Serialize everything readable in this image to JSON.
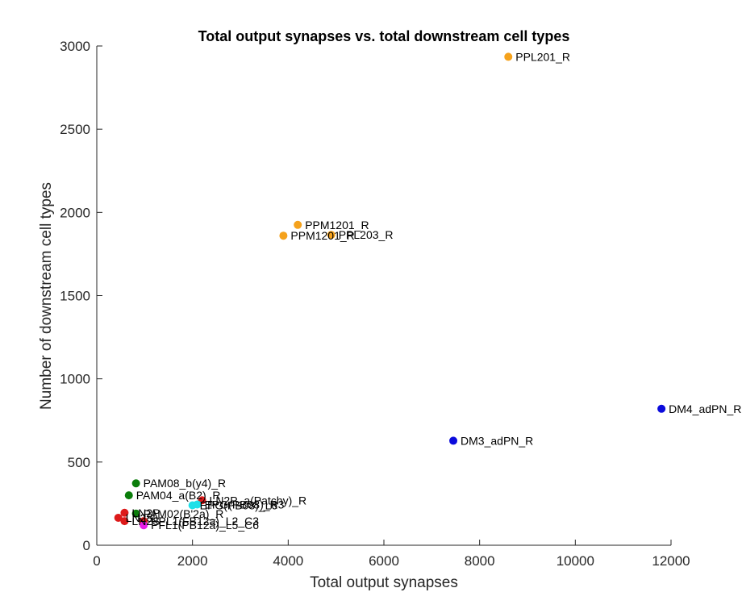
{
  "chart_data": {
    "type": "scatter",
    "title": "Total output synapses vs. total downstream cell types",
    "xlabel": "Total output synapses",
    "ylabel": "Number of downstream cell types",
    "xlim": [
      0,
      12000
    ],
    "ylim": [
      0,
      3000
    ],
    "xticks": [
      0,
      2000,
      4000,
      6000,
      8000,
      10000,
      12000
    ],
    "yticks": [
      0,
      500,
      1000,
      1500,
      2000,
      2500,
      3000
    ],
    "grid": false,
    "colors": {
      "orange": "#f5a21c",
      "blue": "#0b0bdc",
      "green": "#0a7d0a",
      "red": "#dd1a1a",
      "magenta": "#e81ee8",
      "cyan": "#1ee0e8"
    },
    "points": [
      {
        "x": 8600,
        "y": 2935,
        "label": "PPL201_R",
        "color": "orange"
      },
      {
        "x": 4200,
        "y": 1925,
        "label": "PPM1201_R",
        "color": "orange"
      },
      {
        "x": 3900,
        "y": 1860,
        "label": "PPM1201_R",
        "color": "orange"
      },
      {
        "x": 4900,
        "y": 1865,
        "label": "PPL203_R",
        "color": "orange"
      },
      {
        "x": 11800,
        "y": 820,
        "label": "DM4_adPN_R",
        "color": "blue"
      },
      {
        "x": 7450,
        "y": 628,
        "label": "DM3_adPN_R",
        "color": "blue"
      },
      {
        "x": 820,
        "y": 372,
        "label": "PAM08_b(y4)_R",
        "color": "green"
      },
      {
        "x": 670,
        "y": 300,
        "label": "PAM04_a(B2)_R",
        "color": "green"
      },
      {
        "x": 2200,
        "y": 270,
        "label": "LN2P_a(Patchy)_R",
        "color": "red"
      },
      {
        "x": 2000,
        "y": 240,
        "label": "EPG(PB08)_L6",
        "color": "cyan"
      },
      {
        "x": 2100,
        "y": 245,
        "label": "EPG(PB08)_R3",
        "color": "cyan"
      },
      {
        "x": 820,
        "y": 190,
        "label": "PAM02(B'2a)_R",
        "color": "green"
      },
      {
        "x": 580,
        "y": 195,
        "label": "LN2P",
        "color": "red"
      },
      {
        "x": 450,
        "y": 165,
        "label": "LN2S",
        "color": "red"
      },
      {
        "x": 580,
        "y": 145,
        "label": "LN2S",
        "color": "red"
      },
      {
        "x": 980,
        "y": 145,
        "label": "PPL1(FB12a)_L2_C3",
        "color": "red"
      },
      {
        "x": 980,
        "y": 120,
        "label": "PFL1(PB12a)_L5_C6",
        "color": "magenta"
      }
    ]
  }
}
